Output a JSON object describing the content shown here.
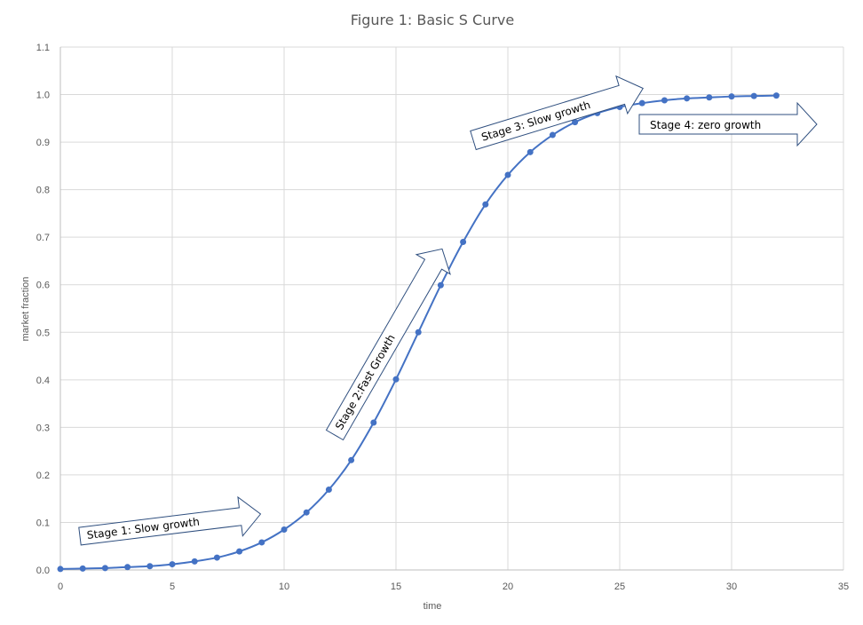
{
  "chart_data": {
    "type": "scatter",
    "title": "Figure 1: Basic S Curve",
    "xlabel": "time",
    "ylabel": "market fraction",
    "xlim": [
      0,
      35
    ],
    "ylim": [
      0,
      1.1
    ],
    "xticks": [
      0,
      5,
      10,
      15,
      20,
      25,
      30,
      35
    ],
    "yticks": [
      0.0,
      0.1,
      0.2,
      0.3,
      0.4,
      0.5,
      0.6,
      0.7,
      0.8,
      0.9,
      1.0,
      1.1
    ],
    "grid": true,
    "legend": "none",
    "series": [
      {
        "color": "#4472c4",
        "x": [
          0,
          1,
          2,
          3,
          4,
          5,
          6,
          7,
          8,
          9,
          10,
          11,
          12,
          13,
          14,
          15,
          16,
          17,
          18,
          19,
          20,
          21,
          22,
          23,
          24,
          25,
          26,
          27,
          28,
          29,
          30,
          31,
          32
        ],
        "y": [
          0.002,
          0.003,
          0.004,
          0.006,
          0.008,
          0.012,
          0.018,
          0.026,
          0.039,
          0.058,
          0.085,
          0.121,
          0.169,
          0.231,
          0.31,
          0.401,
          0.5,
          0.599,
          0.69,
          0.769,
          0.831,
          0.879,
          0.915,
          0.942,
          0.961,
          0.974,
          0.982,
          0.988,
          0.992,
          0.994,
          0.996,
          0.997,
          0.998
        ]
      }
    ],
    "annotations": [
      {
        "text": "Stage 1: Slow growth"
      },
      {
        "text": "Stage 2:Fast Growth"
      },
      {
        "text": "Stage 3: Slow growth"
      },
      {
        "text": "Stage 4: zero growth"
      }
    ]
  }
}
